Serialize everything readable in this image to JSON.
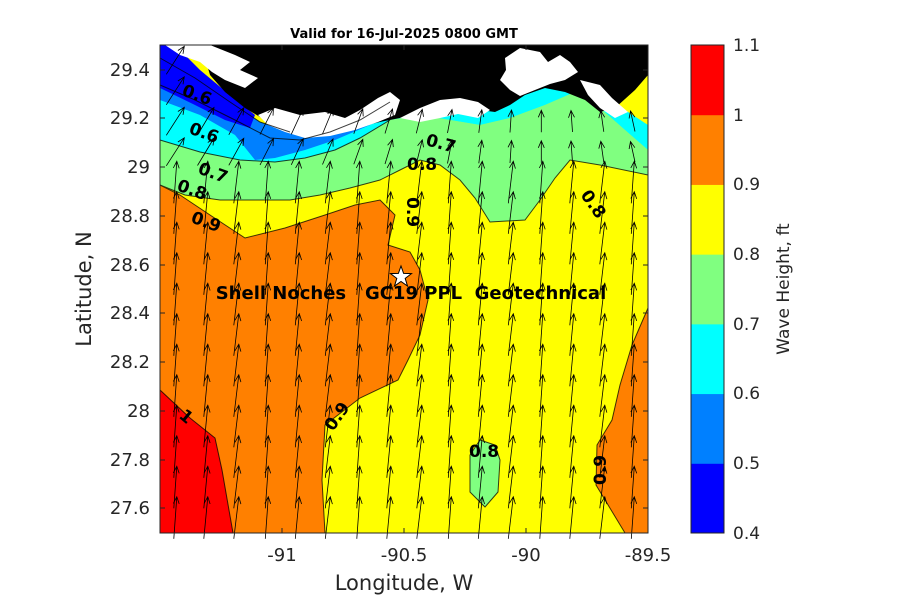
{
  "title": "Valid for 16-Jul-2025 0800 GMT",
  "xlabel": "Longitude, W",
  "ylabel": "Latitude, N",
  "colorbar_label": "Wave Height, ft",
  "site_label": "Shell Noches   GC19 PPL  Geotechnical",
  "site_marker": {
    "lon": -90.52,
    "lat": 28.55,
    "symbol": "star"
  },
  "x_ticks": [
    "-91",
    "-90.5",
    "-90",
    "-89.5"
  ],
  "y_ticks": [
    "29.4",
    "29.2",
    "29",
    "28.8",
    "28.6",
    "28.4",
    "28.2",
    "28",
    "27.8",
    "27.6"
  ],
  "xlim": [
    -91.5,
    -89.5
  ],
  "ylim": [
    27.5,
    29.5
  ],
  "colorbar": {
    "levels": [
      0.4,
      0.5,
      0.6,
      0.7,
      0.8,
      0.9,
      1.0,
      1.1
    ],
    "tick_labels": [
      "0.4",
      "0.5",
      "0.6",
      "0.7",
      "0.8",
      "0.9",
      "1",
      "1.1"
    ],
    "colors": [
      "#0000ff",
      "#0080ff",
      "#00ffff",
      "#80ff80",
      "#ffff00",
      "#ff8000",
      "#ff0000"
    ]
  },
  "land_color": "#000000",
  "contour_labels": [
    "0.6",
    "0.7",
    "0.8",
    "0.9",
    "0.9",
    "0.8",
    "0.9",
    "1",
    "0.8",
    "0.9",
    "0.8",
    "0.6",
    "0.7"
  ],
  "wave_direction_vectors": {
    "shown": true,
    "color": "#000000",
    "predominant_direction": "toward north-northeast"
  }
}
